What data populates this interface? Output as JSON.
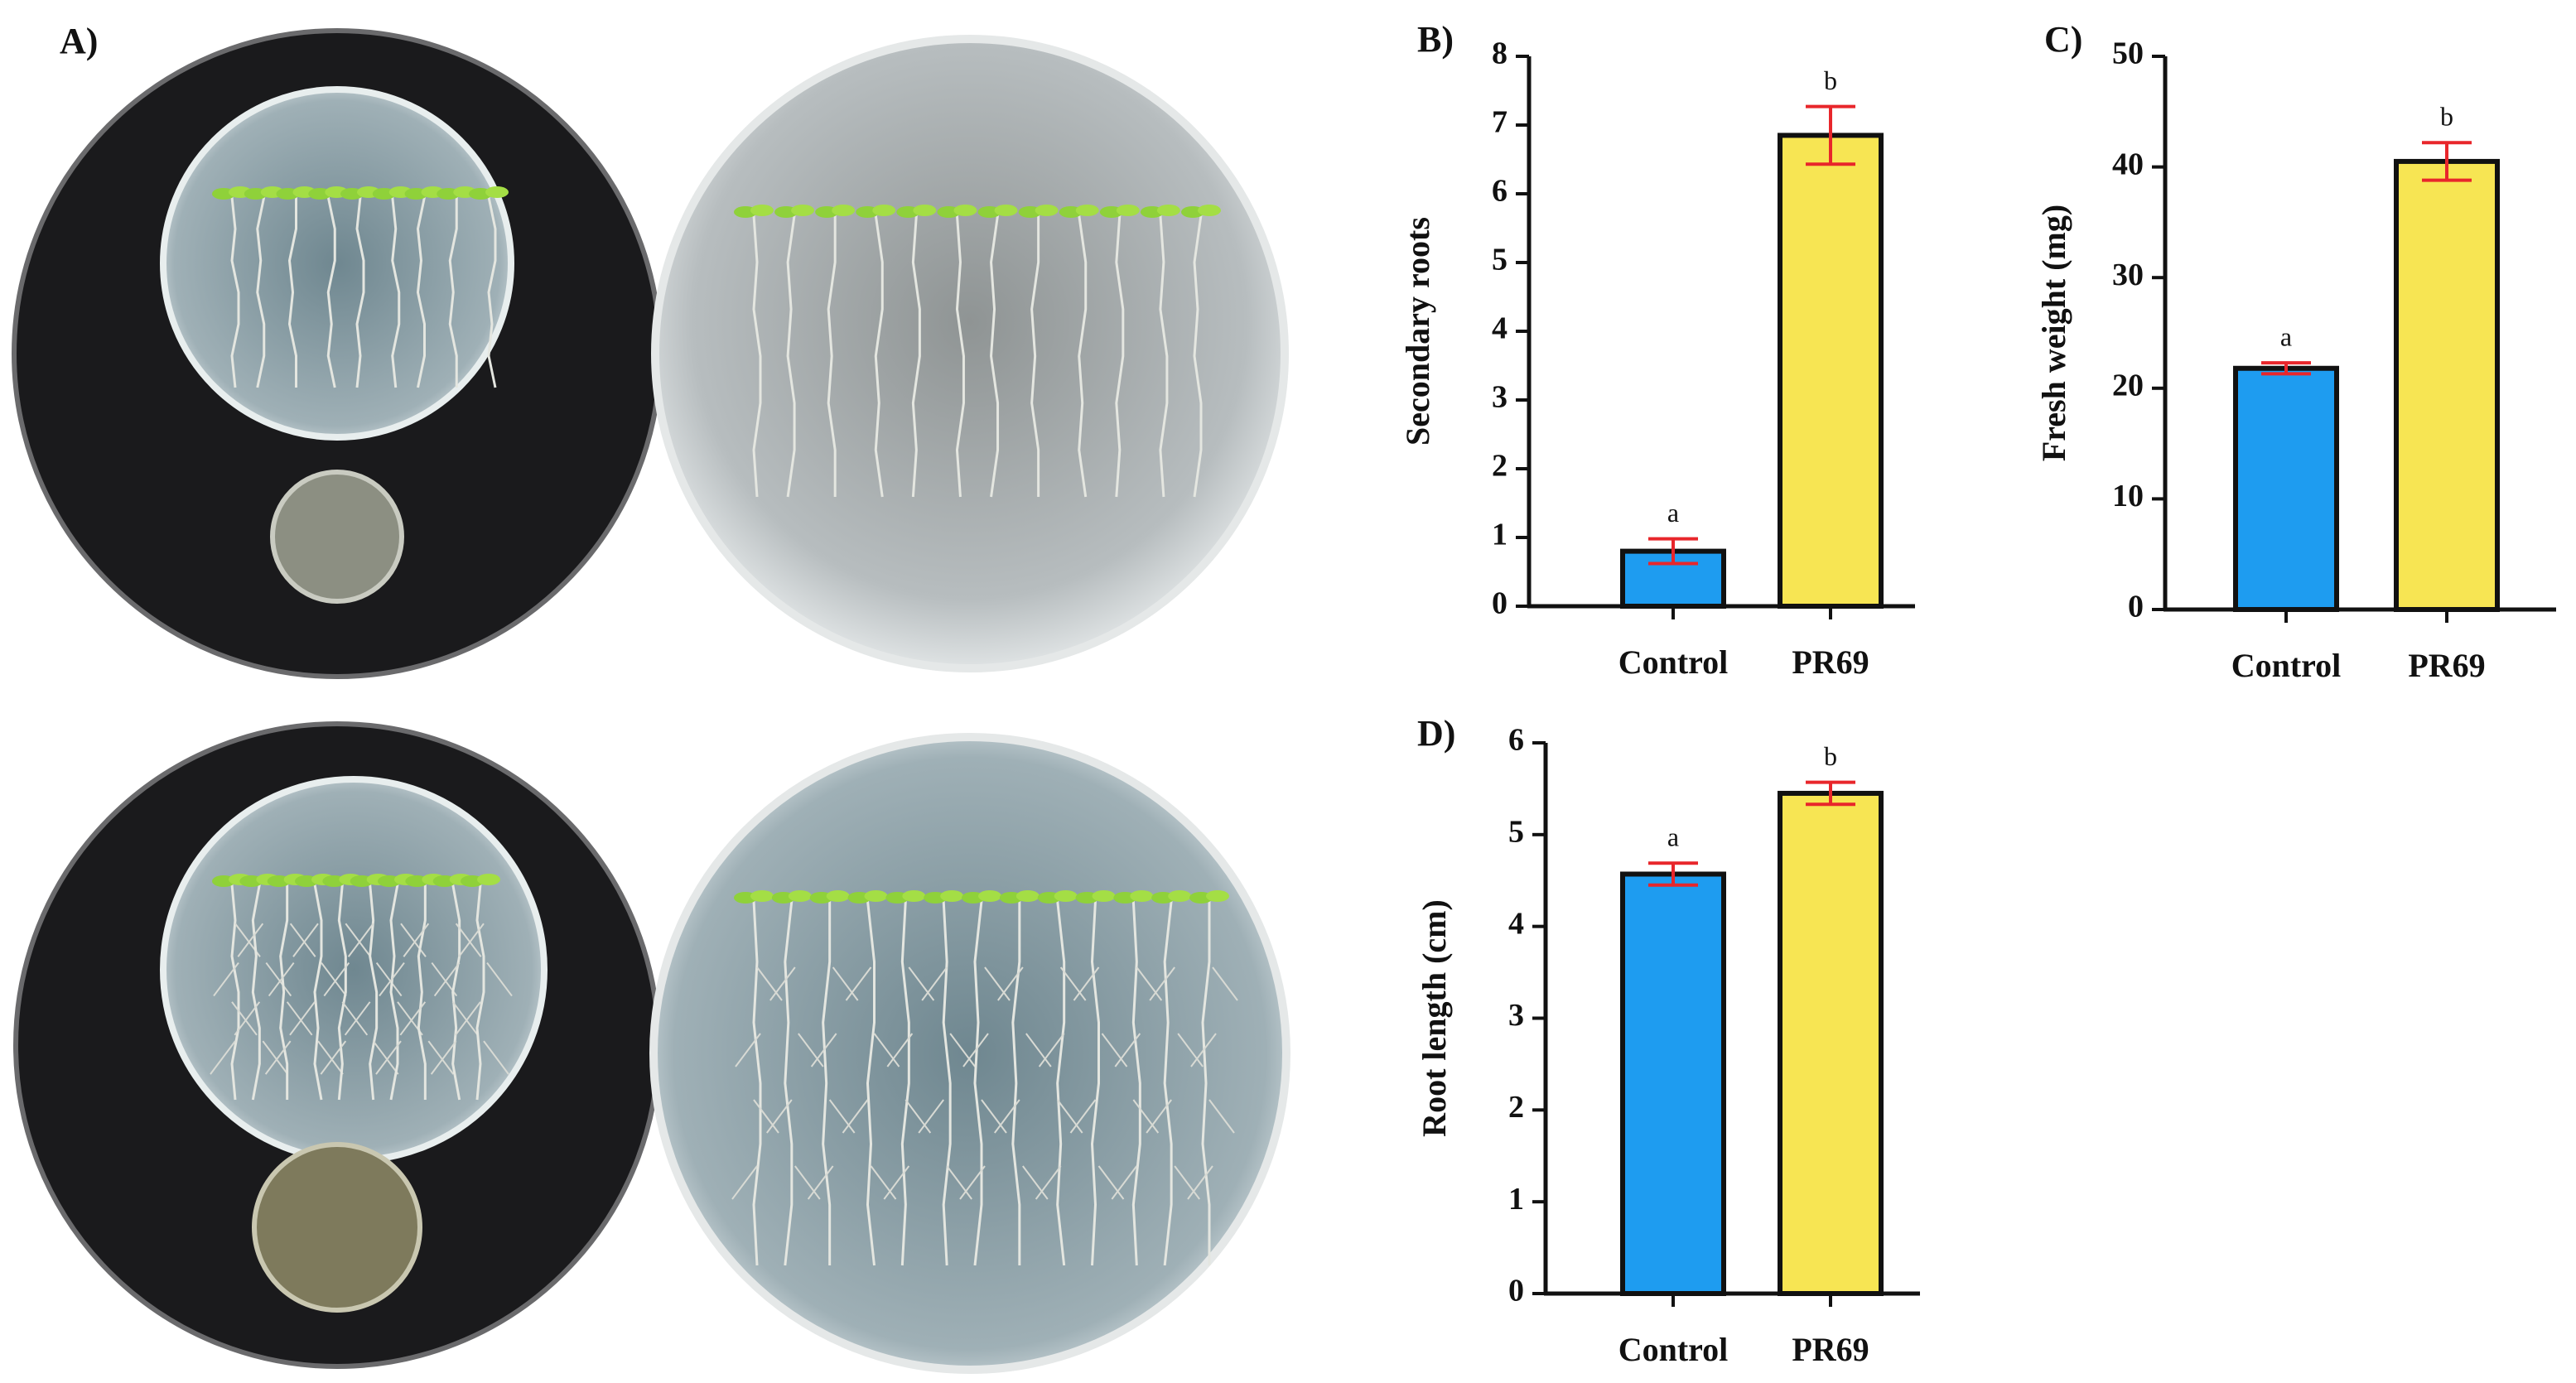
{
  "panel_a": {
    "label": "A)"
  },
  "chart_data": [
    {
      "type": "bar",
      "panel_label": "B)",
      "ylabel": "Secondary roots",
      "categories": [
        "Control",
        "PR69"
      ],
      "values": [
        0.8,
        6.85
      ],
      "errors": [
        0.18,
        0.42
      ],
      "colors": [
        "#1e9cf0",
        "#f7e553"
      ],
      "error_color": "#e8262b",
      "annotations": [
        "a",
        "b"
      ],
      "ylim": [
        0,
        8
      ],
      "yticks": [
        0,
        1,
        2,
        3,
        4,
        5,
        6,
        7,
        8
      ]
    },
    {
      "type": "bar",
      "panel_label": "C)",
      "ylabel": "Fresh weight (mg)",
      "categories": [
        "Control",
        "PR69"
      ],
      "values": [
        21.8,
        40.5
      ],
      "errors": [
        0.5,
        1.7
      ],
      "colors": [
        "#1e9cf0",
        "#f7e553"
      ],
      "error_color": "#e8262b",
      "annotations": [
        "a",
        "b"
      ],
      "ylim": [
        0,
        50
      ],
      "yticks": [
        0,
        10,
        20,
        30,
        40,
        50
      ]
    },
    {
      "type": "bar",
      "panel_label": "D)",
      "ylabel": "Root length (cm)",
      "categories": [
        "Control",
        "PR69"
      ],
      "values": [
        4.57,
        5.45
      ],
      "errors": [
        0.12,
        0.12
      ],
      "colors": [
        "#1e9cf0",
        "#f7e553"
      ],
      "error_color": "#e8262b",
      "annotations": [
        "a",
        "b"
      ],
      "ylim": [
        0,
        6
      ],
      "yticks": [
        0,
        1,
        2,
        3,
        4,
        5,
        6
      ]
    }
  ]
}
